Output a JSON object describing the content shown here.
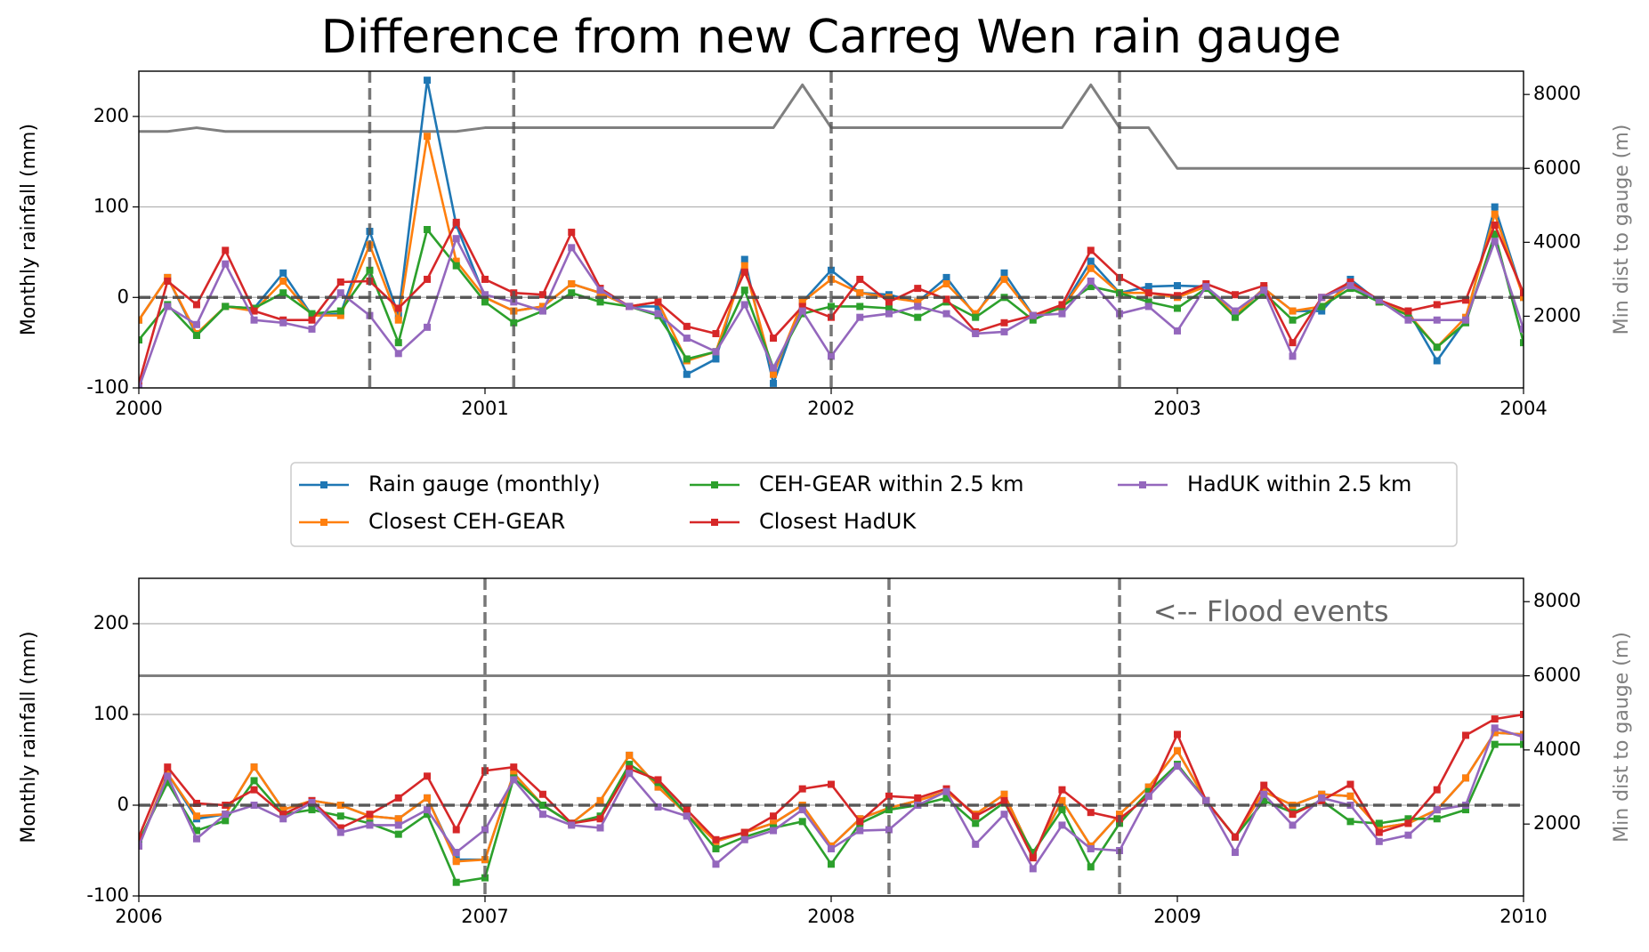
{
  "chart_data": [
    {
      "type": "line",
      "title": "Difference from new Carreg Wen rain gauge",
      "ylabel": "Monthly rainfall (mm)",
      "y2label": "Min dist to gauge (m)",
      "xlim": [
        2000,
        2004
      ],
      "xticks": [
        2000,
        2001,
        2002,
        2003,
        2004
      ],
      "ylim": [
        -100,
        250
      ],
      "yticks": [
        -100,
        0,
        100,
        200
      ],
      "y2lim": [
        60,
        8630
      ],
      "y2ticks": [
        2000,
        4000,
        6000,
        8000
      ],
      "grid": true,
      "hlines": [
        0
      ],
      "vlines": [
        2000.667,
        2001.083,
        2002,
        2002.833
      ],
      "x": [
        2000,
        2000.083,
        2000.167,
        2000.25,
        2000.333,
        2000.417,
        2000.5,
        2000.583,
        2000.667,
        2000.75,
        2000.833,
        2000.917,
        2001,
        2001.083,
        2001.167,
        2001.25,
        2001.333,
        2001.417,
        2001.5,
        2001.583,
        2001.667,
        2001.75,
        2001.833,
        2001.917,
        2002,
        2002.083,
        2002.167,
        2002.25,
        2002.333,
        2002.417,
        2002.5,
        2002.583,
        2002.667,
        2002.75,
        2002.833,
        2002.917,
        2003,
        2003.083,
        2003.167,
        2003.25,
        2003.333,
        2003.417,
        2003.5,
        2003.583,
        2003.667,
        2003.75,
        2003.833,
        2003.917,
        2004
      ],
      "series": [
        {
          "name": "Rain gauge (monthly)",
          "color": "#1f77b4",
          "values": [
            -25,
            22,
            -42,
            -10,
            -12,
            27,
            -20,
            -18,
            73,
            -20,
            240,
            80,
            0,
            -15,
            -10,
            15,
            5,
            -10,
            -10,
            -85,
            -68,
            42,
            -95,
            -5,
            30,
            5,
            3,
            -5,
            22,
            -20,
            27,
            -20,
            -12,
            40,
            5,
            12,
            13,
            12,
            -20,
            10,
            -15,
            -15,
            20,
            -5,
            -15,
            -70,
            -25,
            100,
            0
          ]
        },
        {
          "name": "Closest CEH-GEAR",
          "color": "#ff7f0e",
          "values": [
            -25,
            22,
            -40,
            -10,
            -15,
            18,
            -20,
            -20,
            58,
            -25,
            178,
            40,
            0,
            -15,
            -10,
            15,
            5,
            -10,
            -5,
            -70,
            -60,
            35,
            -85,
            -5,
            20,
            5,
            0,
            -5,
            15,
            -18,
            20,
            -20,
            -12,
            32,
            5,
            5,
            0,
            12,
            -20,
            10,
            -15,
            -10,
            15,
            -5,
            -18,
            -55,
            -22,
            92,
            0
          ]
        },
        {
          "name": "CEH-GEAR within 2.5 km",
          "color": "#2ca02c",
          "values": [
            -47,
            -8,
            -42,
            -10,
            -12,
            5,
            -18,
            -15,
            30,
            -50,
            75,
            35,
            -5,
            -28,
            -15,
            5,
            -5,
            -10,
            -20,
            -68,
            -60,
            8,
            -78,
            -18,
            -10,
            -10,
            -12,
            -22,
            -5,
            -22,
            0,
            -25,
            -10,
            12,
            5,
            -5,
            -12,
            10,
            -22,
            5,
            -25,
            -10,
            10,
            -5,
            -20,
            -55,
            -28,
            70,
            -50
          ]
        },
        {
          "name": "Closest HadUK",
          "color": "#d62728",
          "values": [
            -95,
            18,
            -8,
            52,
            -15,
            -25,
            -25,
            17,
            18,
            -12,
            20,
            83,
            20,
            5,
            3,
            72,
            10,
            -10,
            -5,
            -32,
            -40,
            28,
            -45,
            -10,
            -22,
            20,
            -5,
            10,
            -2,
            -38,
            -28,
            -20,
            -8,
            52,
            22,
            5,
            2,
            15,
            3,
            13,
            -50,
            0,
            17,
            -3,
            -15,
            -8,
            -3,
            80,
            5
          ]
        },
        {
          "name": "HadUK within 2.5 km",
          "color": "#9467bd",
          "values": [
            -100,
            -10,
            -30,
            37,
            -25,
            -28,
            -35,
            5,
            -20,
            -62,
            -33,
            65,
            3,
            -5,
            -15,
            55,
            8,
            -10,
            -18,
            -45,
            -60,
            -8,
            -78,
            -15,
            -65,
            -22,
            -18,
            -10,
            -18,
            -40,
            -38,
            -20,
            -18,
            18,
            -18,
            -10,
            -37,
            12,
            -15,
            8,
            -65,
            0,
            13,
            -3,
            -25,
            -25,
            -25,
            62,
            -35
          ]
        },
        {
          "color": "#7f7f7f",
          "axis": "y2",
          "values": [
            7000,
            7000,
            7100,
            7000,
            7000,
            7000,
            7000,
            7000,
            7000,
            7000,
            7000,
            7000,
            7100,
            7100,
            7100,
            7100,
            7100,
            7100,
            7100,
            7100,
            7100,
            7100,
            7100,
            8260,
            7100,
            7100,
            7100,
            7100,
            7100,
            7100,
            7100,
            7100,
            7100,
            8260,
            7100,
            7100,
            6000,
            6000,
            6000,
            6000,
            6000,
            6000,
            6000,
            6000,
            6000,
            6000,
            6000,
            6000,
            6000
          ]
        }
      ]
    },
    {
      "type": "line",
      "ylabel": "Monthly rainfall (mm)",
      "y2label": "Min dist to gauge (m)",
      "xlim": [
        2006,
        2010
      ],
      "xticks": [
        2006,
        2007,
        2008,
        2009,
        2010
      ],
      "ylim": [
        -100,
        250
      ],
      "yticks": [
        -100,
        0,
        100,
        200
      ],
      "y2lim": [
        60,
        8630
      ],
      "y2ticks": [
        2000,
        4000,
        6000,
        8000
      ],
      "grid": true,
      "hlines": [
        0
      ],
      "vlines": [
        2007,
        2008.167,
        2008.833
      ],
      "annotation": {
        "text": "<-- Flood events",
        "x": 2008.93,
        "y": 212
      },
      "x": [
        2006,
        2006.083,
        2006.167,
        2006.25,
        2006.333,
        2006.417,
        2006.5,
        2006.583,
        2006.667,
        2006.75,
        2006.833,
        2006.917,
        2007,
        2007.083,
        2007.167,
        2007.25,
        2007.333,
        2007.417,
        2007.5,
        2007.583,
        2007.667,
        2007.75,
        2007.833,
        2007.917,
        2008,
        2008.083,
        2008.167,
        2008.25,
        2008.333,
        2008.417,
        2008.5,
        2008.583,
        2008.667,
        2008.75,
        2008.833,
        2008.917,
        2009,
        2009.083,
        2009.167,
        2009.25,
        2009.333,
        2009.417,
        2009.5,
        2009.583,
        2009.667,
        2009.75,
        2009.833,
        2009.917,
        2010
      ],
      "series": [
        {
          "name": "Rain gauge (monthly)",
          "color": "#1f77b4",
          "values": [
            -45,
            35,
            -15,
            -10,
            42,
            -5,
            5,
            0,
            -12,
            -15,
            8,
            -60,
            -60,
            35,
            0,
            -20,
            5,
            55,
            20,
            -10,
            -40,
            -30,
            -20,
            0,
            -45,
            -15,
            -3,
            5,
            15,
            -10,
            12,
            -55,
            5,
            -45,
            -10,
            20,
            60,
            5,
            -35,
            15,
            0,
            12,
            10,
            -25,
            -20,
            -5,
            30,
            80,
            78
          ]
        },
        {
          "name": "Closest CEH-GEAR",
          "color": "#ff7f0e",
          "values": [
            -45,
            35,
            -12,
            -10,
            42,
            -5,
            5,
            0,
            -12,
            -15,
            8,
            -62,
            -60,
            35,
            0,
            -20,
            5,
            55,
            20,
            -10,
            -40,
            -30,
            -20,
            0,
            -45,
            -15,
            -3,
            5,
            15,
            -10,
            12,
            -55,
            5,
            -45,
            -10,
            20,
            60,
            5,
            -35,
            15,
            0,
            12,
            10,
            -25,
            -20,
            -5,
            30,
            80,
            78
          ]
        },
        {
          "name": "CEH-GEAR within 2.5 km",
          "color": "#2ca02c",
          "values": [
            -40,
            25,
            -28,
            -17,
            27,
            -10,
            -5,
            -12,
            -20,
            -32,
            -10,
            -85,
            -80,
            30,
            0,
            -20,
            -12,
            45,
            25,
            -10,
            -48,
            -35,
            -25,
            -18,
            -65,
            -20,
            -5,
            0,
            8,
            -20,
            3,
            -52,
            -5,
            -68,
            -20,
            15,
            45,
            5,
            -35,
            5,
            -8,
            5,
            -18,
            -20,
            -15,
            -15,
            -5,
            67,
            67
          ]
        },
        {
          "name": "Closest HadUK",
          "color": "#d62728",
          "values": [
            -35,
            42,
            2,
            0,
            17,
            -10,
            5,
            -25,
            -10,
            8,
            32,
            -27,
            38,
            42,
            12,
            -20,
            -15,
            40,
            28,
            -5,
            -38,
            -30,
            -12,
            18,
            23,
            -18,
            10,
            8,
            18,
            -12,
            5,
            -58,
            17,
            -8,
            -15,
            10,
            78,
            5,
            -35,
            22,
            -10,
            5,
            23,
            -30,
            -20,
            17,
            77,
            95,
            100
          ]
        },
        {
          "name": "HadUK within 2.5 km",
          "color": "#9467bd",
          "values": [
            -45,
            32,
            -37,
            -10,
            0,
            -15,
            3,
            -30,
            -22,
            -22,
            -5,
            -52,
            -27,
            28,
            -10,
            -22,
            -25,
            35,
            -2,
            -12,
            -65,
            -38,
            -28,
            -5,
            -48,
            -28,
            -27,
            0,
            15,
            -43,
            -10,
            -70,
            -22,
            -48,
            -50,
            10,
            43,
            5,
            -52,
            12,
            -22,
            8,
            0,
            -40,
            -33,
            -5,
            0,
            85,
            75
          ]
        },
        {
          "color": "#7f7f7f",
          "axis": "y2",
          "values": [
            6000,
            6000,
            6000,
            6000,
            6000,
            6000,
            6000,
            6000,
            6000,
            6000,
            6000,
            6000,
            6000,
            6000,
            6000,
            6000,
            6000,
            6000,
            6000,
            6000,
            6000,
            6000,
            6000,
            6000,
            6000,
            6000,
            6000,
            6000,
            6000,
            6000,
            6000,
            6000,
            6000,
            6000,
            6000,
            6000,
            6000,
            6000,
            6000,
            6000,
            6000,
            6000,
            6000,
            6000,
            6000,
            6000,
            6000,
            6000,
            6000
          ]
        }
      ]
    }
  ]
}
